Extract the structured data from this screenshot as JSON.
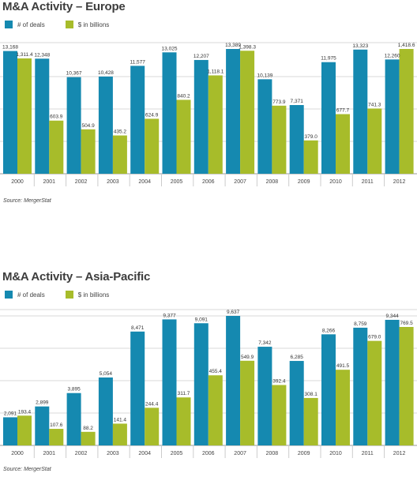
{
  "colors": {
    "deals": "#1589b0",
    "billions": "#a7bc2a",
    "grid": "#d9d9d9",
    "axis": "#999999"
  },
  "chart_data": [
    {
      "type": "bar",
      "title": "M&A Activity – Europe",
      "legend": [
        "# of deals",
        "$ in billions"
      ],
      "categories": [
        "2000",
        "2001",
        "2002",
        "2003",
        "2004",
        "2005",
        "2006",
        "2007",
        "2008",
        "2009",
        "2010",
        "2011",
        "2012"
      ],
      "series": [
        {
          "name": "# of deals",
          "values": [
            13168,
            12348,
            10367,
            10428,
            11577,
            13025,
            12207,
            13389,
            10139,
            7371,
            11975,
            13323,
            12260
          ],
          "labels": [
            "13,168",
            "12,348",
            "10,367",
            "10,428",
            "11,577",
            "13,025",
            "12,207",
            "13,389",
            "10,139",
            "7,371",
            "11,975",
            "13,323",
            "12,260"
          ]
        },
        {
          "name": "$ in billions",
          "values": [
            1311.4,
            603.9,
            504.9,
            435.2,
            624.9,
            840.2,
            1118.1,
            1398.3,
            773.9,
            379.0,
            677.7,
            741.3,
            1418.6
          ],
          "labels": [
            "1,311.4",
            "603.9",
            "504.9",
            "435.2",
            "624.9",
            "840.2",
            "1,118.1",
            "1,398.3",
            "773.9",
            "379.0",
            "677.7",
            "741.3",
            "1,418.6"
          ]
        }
      ],
      "grid": true,
      "source": "Source: MergerStat"
    },
    {
      "type": "bar",
      "title": "M&A Activity – Asia-Pacific",
      "legend": [
        "# of deals",
        "$ in billions"
      ],
      "categories": [
        "2000",
        "2001",
        "2002",
        "2003",
        "2004",
        "2005",
        "2006",
        "2007",
        "2008",
        "2009",
        "2010",
        "2011",
        "2012"
      ],
      "series": [
        {
          "name": "# of deals",
          "values": [
            2091,
            2899,
            3895,
            5054,
            8471,
            9377,
            9091,
            9637,
            7342,
            6285,
            8266,
            8759,
            9344
          ],
          "labels": [
            "2,091",
            "2,899",
            "3,895",
            "5,054",
            "8,471",
            "9,377",
            "9,091",
            "9,637",
            "7,342",
            "6,285",
            "8,266",
            "8,759",
            "9,344"
          ]
        },
        {
          "name": "$ in billions",
          "values": [
            193.4,
            107.6,
            88.2,
            141.4,
            244.4,
            311.7,
            455.4,
            549.9,
            392.4,
            308.1,
            491.5,
            679.0,
            769.5
          ],
          "labels": [
            "193.4",
            "107.6",
            "88.2",
            "141.4",
            "244.4",
            "311.7",
            "455.4",
            "549.9",
            "392.4",
            "308.1",
            "491.5",
            "679.0",
            "769.5"
          ]
        }
      ],
      "grid": true,
      "source": "Source: MergerStat"
    }
  ]
}
